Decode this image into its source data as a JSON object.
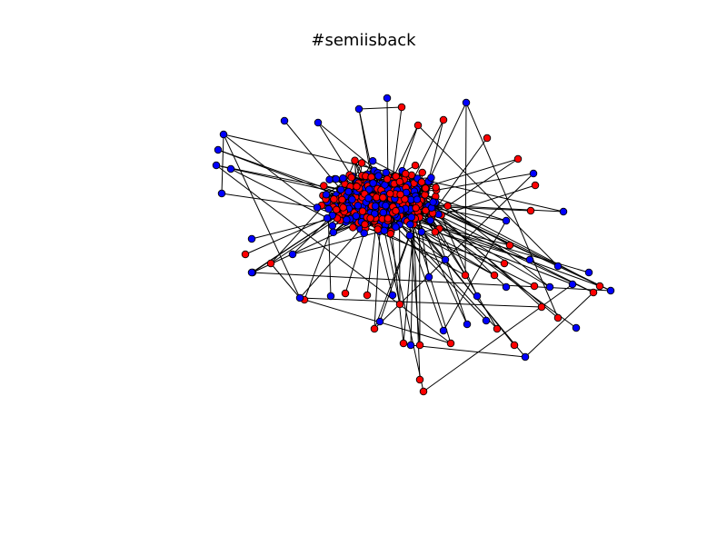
{
  "figure": {
    "title": "#semiisback"
  },
  "graph": {
    "type": "network",
    "colors": {
      "group_a": "#ff0000",
      "group_b": "#0000ff",
      "edge": "#000000",
      "node_outline": "#000000",
      "background": "#ffffff"
    }
  }
}
